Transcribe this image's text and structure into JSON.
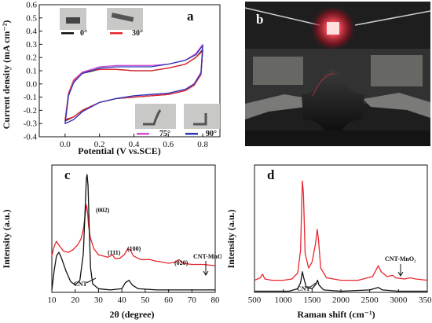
{
  "chart_data": [
    {
      "panel": "a",
      "type": "line",
      "xlabel": "Potential (V vs.SCE)",
      "ylabel": "Current density (mA cm⁻²)",
      "xlim": [
        -0.15,
        0.9
      ],
      "ylim": [
        -0.4,
        0.6
      ],
      "xticks": [
        "0.0",
        "0.2",
        "0.4",
        "0.6",
        "0.8"
      ],
      "yticks": [
        "-0.4",
        "-0.3",
        "-0.2",
        "-0.1",
        "0.0",
        "0.1",
        "0.2",
        "0.3",
        "0.4",
        "0.5",
        "0.6"
      ],
      "series": [
        {
          "name": "0°",
          "color": "#111111",
          "upper": [
            [
              0,
              -0.28
            ],
            [
              0.02,
              -0.08
            ],
            [
              0.05,
              0.02
            ],
            [
              0.1,
              0.08
            ],
            [
              0.2,
              0.11
            ],
            [
              0.3,
              0.11
            ],
            [
              0.4,
              0.1
            ],
            [
              0.5,
              0.1
            ],
            [
              0.6,
              0.12
            ],
            [
              0.7,
              0.15
            ],
            [
              0.76,
              0.2
            ],
            [
              0.8,
              0.26
            ]
          ],
          "lower": [
            [
              0.8,
              0.26
            ],
            [
              0.79,
              0.08
            ],
            [
              0.75,
              -0.01
            ],
            [
              0.7,
              -0.05
            ],
            [
              0.6,
              -0.08
            ],
            [
              0.5,
              -0.09
            ],
            [
              0.4,
              -0.1
            ],
            [
              0.3,
              -0.11
            ],
            [
              0.2,
              -0.14
            ],
            [
              0.1,
              -0.2
            ],
            [
              0.05,
              -0.25
            ],
            [
              0,
              -0.28
            ]
          ]
        },
        {
          "name": "30°",
          "color": "#e8262e",
          "upper": [
            [
              0,
              -0.27
            ],
            [
              0.02,
              -0.07
            ],
            [
              0.05,
              0.03
            ],
            [
              0.1,
              0.09
            ],
            [
              0.2,
              0.11
            ],
            [
              0.3,
              0.11
            ],
            [
              0.4,
              0.1
            ],
            [
              0.5,
              0.1
            ],
            [
              0.6,
              0.12
            ],
            [
              0.7,
              0.15
            ],
            [
              0.76,
              0.2
            ],
            [
              0.8,
              0.25
            ]
          ],
          "lower": [
            [
              0.8,
              0.25
            ],
            [
              0.79,
              0.07
            ],
            [
              0.75,
              -0.01
            ],
            [
              0.7,
              -0.05
            ],
            [
              0.6,
              -0.08
            ],
            [
              0.5,
              -0.09
            ],
            [
              0.4,
              -0.1
            ],
            [
              0.3,
              -0.11
            ],
            [
              0.2,
              -0.14
            ],
            [
              0.1,
              -0.2
            ],
            [
              0.05,
              -0.25
            ],
            [
              0,
              -0.27
            ]
          ]
        },
        {
          "name": "75°",
          "color": "#d14fd6",
          "upper": [
            [
              0,
              -0.3
            ],
            [
              0.02,
              -0.09
            ],
            [
              0.05,
              0.02
            ],
            [
              0.1,
              0.09
            ],
            [
              0.2,
              0.13
            ],
            [
              0.3,
              0.14
            ],
            [
              0.4,
              0.14
            ],
            [
              0.5,
              0.14
            ],
            [
              0.6,
              0.15
            ],
            [
              0.7,
              0.18
            ],
            [
              0.76,
              0.23
            ],
            [
              0.8,
              0.3
            ]
          ],
          "lower": [
            [
              0.8,
              0.3
            ],
            [
              0.79,
              0.09
            ],
            [
              0.75,
              0.0
            ],
            [
              0.7,
              -0.04
            ],
            [
              0.6,
              -0.07
            ],
            [
              0.5,
              -0.08
            ],
            [
              0.4,
              -0.09
            ],
            [
              0.3,
              -0.11
            ],
            [
              0.2,
              -0.14
            ],
            [
              0.1,
              -0.21
            ],
            [
              0.05,
              -0.27
            ],
            [
              0,
              -0.3
            ]
          ]
        },
        {
          "name": "90°",
          "color": "#2a35b8",
          "upper": [
            [
              0,
              -0.3
            ],
            [
              0.02,
              -0.09
            ],
            [
              0.05,
              0.01
            ],
            [
              0.1,
              0.08
            ],
            [
              0.2,
              0.12
            ],
            [
              0.3,
              0.13
            ],
            [
              0.4,
              0.13
            ],
            [
              0.5,
              0.13
            ],
            [
              0.6,
              0.15
            ],
            [
              0.7,
              0.18
            ],
            [
              0.76,
              0.22
            ],
            [
              0.8,
              0.29
            ]
          ],
          "lower": [
            [
              0.8,
              0.29
            ],
            [
              0.79,
              0.08
            ],
            [
              0.75,
              0.0
            ],
            [
              0.7,
              -0.04
            ],
            [
              0.6,
              -0.07
            ],
            [
              0.5,
              -0.08
            ],
            [
              0.4,
              -0.09
            ],
            [
              0.3,
              -0.11
            ],
            [
              0.2,
              -0.14
            ],
            [
              0.1,
              -0.21
            ],
            [
              0.05,
              -0.27
            ],
            [
              0,
              -0.3
            ]
          ]
        }
      ]
    },
    {
      "panel": "c",
      "type": "line",
      "xlabel": "2θ (degree)",
      "ylabel": "Intensity (a.u.)",
      "xlim": [
        10,
        80
      ],
      "xticks": [
        "10",
        "20",
        "30",
        "40",
        "50",
        "60",
        "70",
        "80"
      ],
      "annotations": [
        "(002)",
        "(111)",
        "(100)",
        "(020)"
      ],
      "series": [
        {
          "name": "CNT-MnO₂",
          "color": "#e8262e",
          "points": [
            [
              10,
              0.3
            ],
            [
              11,
              0.38
            ],
            [
              12,
              0.42
            ],
            [
              13,
              0.39
            ],
            [
              15,
              0.34
            ],
            [
              17,
              0.33
            ],
            [
              19,
              0.35
            ],
            [
              21,
              0.39
            ],
            [
              22.5,
              0.44
            ],
            [
              23.5,
              0.52
            ],
            [
              24.3,
              0.64
            ],
            [
              24.8,
              0.72
            ],
            [
              25.2,
              0.68
            ],
            [
              25.8,
              0.54
            ],
            [
              26.5,
              0.45
            ],
            [
              28,
              0.36
            ],
            [
              30,
              0.31
            ],
            [
              32,
              0.3
            ],
            [
              34,
              0.29
            ],
            [
              36,
              0.31
            ],
            [
              37,
              0.28
            ],
            [
              39,
              0.28
            ],
            [
              41,
              0.31
            ],
            [
              42.5,
              0.36
            ],
            [
              43.5,
              0.35
            ],
            [
              45,
              0.3
            ],
            [
              48,
              0.27
            ],
            [
              52,
              0.27
            ],
            [
              54,
              0.26
            ],
            [
              57,
              0.25
            ],
            [
              60,
              0.24
            ],
            [
              63,
              0.25
            ],
            [
              64.5,
              0.27
            ],
            [
              66,
              0.24
            ],
            [
              70,
              0.23
            ],
            [
              75,
              0.23
            ],
            [
              80,
              0.22
            ]
          ]
        },
        {
          "name": "CNT",
          "color": "#111111",
          "points": [
            [
              10,
              0.02
            ],
            [
              11,
              0.18
            ],
            [
              12,
              0.3
            ],
            [
              13,
              0.33
            ],
            [
              14,
              0.29
            ],
            [
              16,
              0.18
            ],
            [
              18,
              0.09
            ],
            [
              20,
              0.06
            ],
            [
              22,
              0.1
            ],
            [
              23.5,
              0.32
            ],
            [
              24.3,
              0.7
            ],
            [
              24.8,
              0.94
            ],
            [
              25.1,
              0.97
            ],
            [
              25.5,
              0.88
            ],
            [
              26,
              0.55
            ],
            [
              26.6,
              0.2
            ],
            [
              27.5,
              0.07
            ],
            [
              30,
              0.03
            ],
            [
              35,
              0.02
            ],
            [
              40,
              0.03
            ],
            [
              41.5,
              0.08
            ],
            [
              43,
              0.1
            ],
            [
              44.5,
              0.06
            ],
            [
              47,
              0.03
            ],
            [
              55,
              0.02
            ],
            [
              65,
              0.02
            ],
            [
              80,
              0.02
            ]
          ]
        }
      ]
    },
    {
      "panel": "d",
      "type": "line",
      "xlabel": "Raman shift (cm⁻¹)",
      "ylabel": "Intensity (a.u.)",
      "xlim": [
        500,
        3500
      ],
      "xticks": [
        "500",
        "1000",
        "1500",
        "2000",
        "2500",
        "3000",
        "3500"
      ],
      "series": [
        {
          "name": "CNT-MnO₂",
          "color": "#e8262e",
          "points": [
            [
              500,
              0.1
            ],
            [
              600,
              0.12
            ],
            [
              640,
              0.15
            ],
            [
              680,
              0.11
            ],
            [
              800,
              0.1
            ],
            [
              1000,
              0.1
            ],
            [
              1150,
              0.11
            ],
            [
              1250,
              0.16
            ],
            [
              1300,
              0.35
            ],
            [
              1330,
              0.92
            ],
            [
              1350,
              0.82
            ],
            [
              1380,
              0.32
            ],
            [
              1440,
              0.2
            ],
            [
              1500,
              0.25
            ],
            [
              1560,
              0.4
            ],
            [
              1590,
              0.52
            ],
            [
              1610,
              0.44
            ],
            [
              1650,
              0.2
            ],
            [
              1750,
              0.12
            ],
            [
              2000,
              0.1
            ],
            [
              2300,
              0.1
            ],
            [
              2550,
              0.13
            ],
            [
              2650,
              0.22
            ],
            [
              2700,
              0.17
            ],
            [
              2800,
              0.13
            ],
            [
              2900,
              0.14
            ],
            [
              2950,
              0.12
            ],
            [
              3100,
              0.11
            ],
            [
              3200,
              0.12
            ],
            [
              3300,
              0.11
            ],
            [
              3500,
              0.1
            ]
          ]
        },
        {
          "name": "CNT",
          "color": "#111111",
          "points": [
            [
              500,
              0.01
            ],
            [
              800,
              0.01
            ],
            [
              1100,
              0.01
            ],
            [
              1250,
              0.03
            ],
            [
              1300,
              0.08
            ],
            [
              1330,
              0.17
            ],
            [
              1355,
              0.12
            ],
            [
              1400,
              0.04
            ],
            [
              1500,
              0.03
            ],
            [
              1570,
              0.07
            ],
            [
              1595,
              0.1
            ],
            [
              1620,
              0.06
            ],
            [
              1700,
              0.02
            ],
            [
              2000,
              0.01
            ],
            [
              2500,
              0.02
            ],
            [
              2650,
              0.04
            ],
            [
              2720,
              0.02
            ],
            [
              3000,
              0.01
            ],
            [
              3500,
              0.01
            ]
          ]
        }
      ]
    }
  ],
  "labels": {
    "a": "a",
    "b": "b",
    "c": "c",
    "d": "d"
  },
  "legend_a": {
    "angle_0": "0°",
    "angle_30": "30°",
    "angle_75": "75°",
    "angle_90": "90°"
  },
  "series_labels": {
    "c_red": "CNT-MnO₂",
    "c_black": "CNT",
    "d_red": "CNT-MnO₂",
    "d_black": "CNT"
  },
  "colors": {
    "black": "#111111",
    "red": "#e8262e",
    "magenta": "#d14fd6",
    "blue": "#2a35b8",
    "photo_bg": "#222222",
    "led": "#ff3040"
  }
}
